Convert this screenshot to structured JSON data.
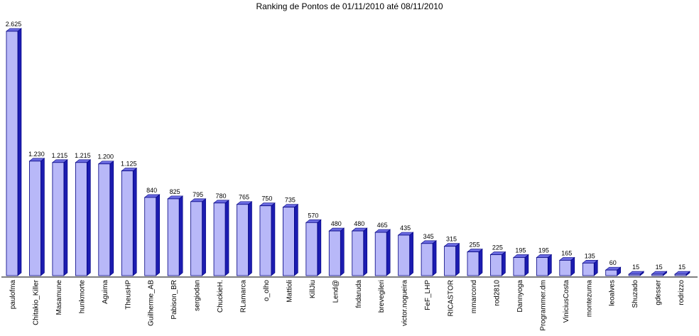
{
  "chart_data": {
    "type": "bar",
    "title": "Ranking de Pontos de 01/11/2010 até 08/11/2010",
    "xlabel": "",
    "ylabel": "",
    "grid": false,
    "legend": "none",
    "bar_style": "3d",
    "colors": {
      "face": "#b8b8f8",
      "side": "#1c1cb0",
      "top": "#6a6ae0",
      "outline": "#000080",
      "axis": "#000000"
    },
    "categories": [
      "paulofma",
      "Chitakio_Killer",
      "Masamune",
      "hunkmorte",
      "Aguima",
      "TheusHP",
      "Guilherme_AB",
      "Pabison_BR",
      "sergiodan",
      "ChuckieH.",
      "RLamarca",
      "o_olho",
      "Mattioli",
      "KillJiu",
      "Lend@",
      "fndaruda",
      "brevegileri",
      "victor.nogueira",
      "FeF_LHP",
      "RICASTOR",
      "mmarcond",
      "rod2810",
      "Dannyoga",
      "Programmer.dm",
      "ViniciusCosta",
      "montezuma",
      "leoalves",
      "Shuzado",
      "gdesser",
      "rodrizzo"
    ],
    "values": [
      2625,
      1230,
      1215,
      1215,
      1200,
      1125,
      840,
      825,
      795,
      780,
      765,
      750,
      735,
      570,
      480,
      480,
      465,
      435,
      345,
      315,
      255,
      225,
      195,
      195,
      165,
      135,
      60,
      15,
      15,
      15
    ],
    "value_labels": [
      "2.625",
      "1.230",
      "1.215",
      "1.215",
      "1.200",
      "1.125",
      "840",
      "825",
      "795",
      "780",
      "765",
      "750",
      "735",
      "570",
      "480",
      "480",
      "465",
      "435",
      "345",
      "315",
      "255",
      "225",
      "195",
      "195",
      "165",
      "135",
      "60",
      "15",
      "15",
      "15"
    ],
    "ylim": [
      0,
      2625
    ]
  }
}
